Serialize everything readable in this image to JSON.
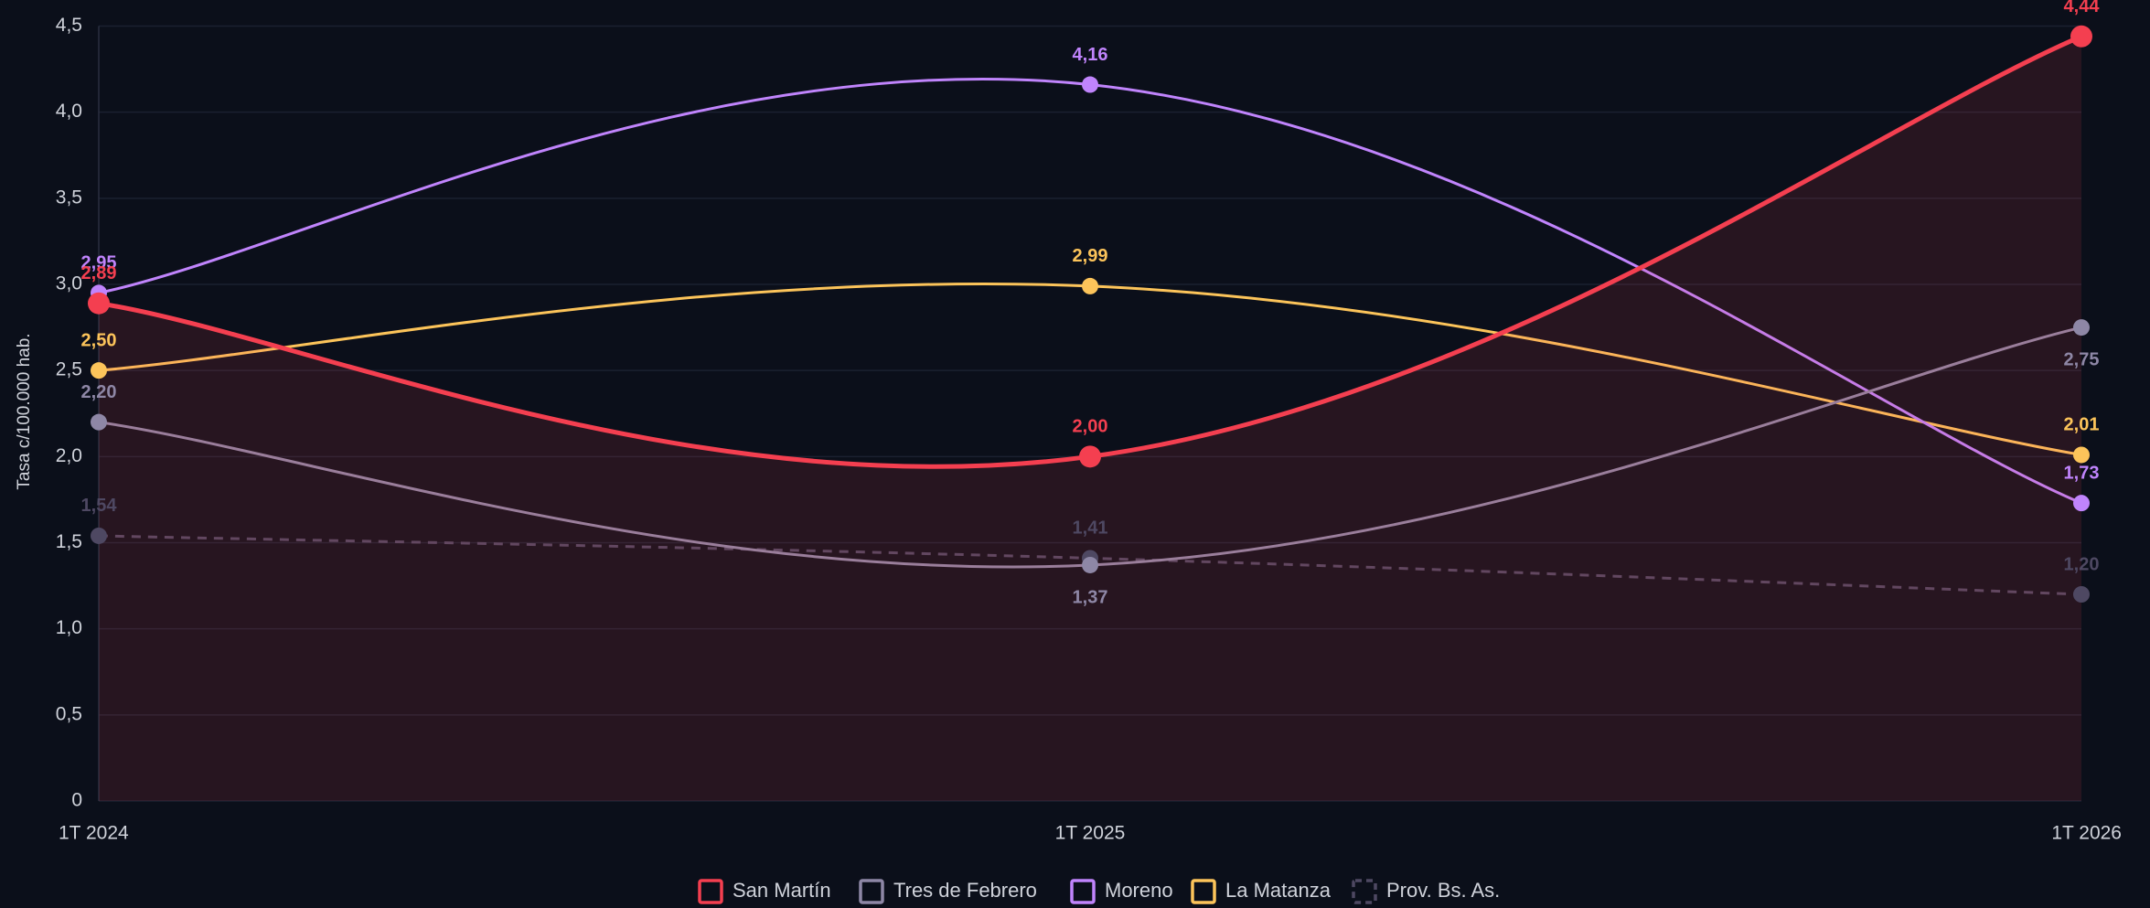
{
  "chart_data": {
    "type": "line",
    "y_label": "Tasa c/100.000 hab.",
    "categories": [
      "1T 2024",
      "1T 2025",
      "1T 2026"
    ],
    "ylim": [
      0,
      4.5
    ],
    "yticks": [
      0,
      {
        "value": 0.5,
        "label": "0,5"
      },
      {
        "value": 1,
        "label": "1,0"
      },
      {
        "value": 1.5,
        "label": "1,5"
      },
      {
        "value": 2,
        "label": "2,0"
      },
      {
        "value": 2.5,
        "label": "2,5"
      },
      {
        "value": 3,
        "label": "3,0"
      },
      {
        "value": 3.5,
        "label": "3,5"
      },
      {
        "value": 4,
        "label": "4,0"
      },
      {
        "value": 4.5,
        "label": "4,5"
      }
    ],
    "grid": true,
    "legend": "bottom",
    "series": [
      {
        "name": "San Martín",
        "color": "#f43f50",
        "values": [
          2.89,
          2.0,
          4.44
        ],
        "value_labels": [
          "2,89",
          "2,00",
          "4,44"
        ],
        "area": true,
        "width": 5
      },
      {
        "name": "Tres de Febrero",
        "color": "#8e87a6",
        "values": [
          2.2,
          1.37,
          2.75
        ],
        "value_labels": [
          "2,20",
          "1,37",
          "2,75"
        ]
      },
      {
        "name": "Moreno",
        "color": "#c084fc",
        "values": [
          2.95,
          4.16,
          1.73
        ],
        "value_labels": [
          "2,95",
          "4,16",
          "1,73"
        ]
      },
      {
        "name": "La Matanza",
        "color": "#fcc45a",
        "values": [
          2.5,
          2.99,
          2.01
        ],
        "value_labels": [
          "2,50",
          "2,99",
          "2,01"
        ]
      },
      {
        "name": "Prov. Bs. As.",
        "color": "#4e4862",
        "values": [
          1.54,
          1.41,
          1.2
        ],
        "value_labels": [
          "1,54",
          "1,41",
          "1,20"
        ],
        "dashed": true
      }
    ]
  }
}
